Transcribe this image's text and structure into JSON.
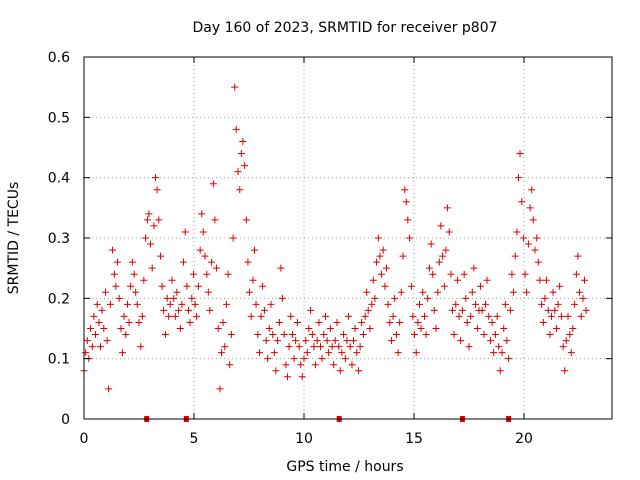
{
  "chart_data": {
    "type": "scatter",
    "title": "Day 160 of 2023, SRMTID for receiver p807",
    "xlabel": "GPS time / hours",
    "ylabel": "SRMTID / TECUs",
    "xlim": [
      0,
      24
    ],
    "ylim": [
      0,
      0.6
    ],
    "xticks": [
      0,
      5,
      10,
      15,
      20
    ],
    "xtick_labels": [
      "0",
      "5",
      "10",
      "15",
      "20"
    ],
    "yticks": [
      0,
      0.1,
      0.2,
      0.3,
      0.4,
      0.5,
      0.6
    ],
    "ytick_labels": [
      "0",
      "0.1",
      "0.2",
      "0.3",
      "0.4",
      "0.5",
      "0.6"
    ],
    "grid": true,
    "marker": "+",
    "color": "#dd0000",
    "series": [
      {
        "name": "SRMTID",
        "points": [
          [
            0.0,
            0.08
          ],
          [
            0.08,
            0.11
          ],
          [
            0.15,
            0.13
          ],
          [
            0.22,
            0.1
          ],
          [
            0.3,
            0.15
          ],
          [
            0.38,
            0.12
          ],
          [
            0.45,
            0.17
          ],
          [
            0.52,
            0.14
          ],
          [
            0.6,
            0.19
          ],
          [
            0.68,
            0.16
          ],
          [
            0.75,
            0.12
          ],
          [
            0.82,
            0.18
          ],
          [
            0.9,
            0.15
          ],
          [
            0.98,
            0.21
          ],
          [
            1.05,
            0.13
          ],
          [
            1.12,
            0.05
          ],
          [
            1.2,
            0.19
          ],
          [
            1.3,
            0.28
          ],
          [
            1.38,
            0.24
          ],
          [
            1.45,
            0.22
          ],
          [
            1.52,
            0.26
          ],
          [
            1.6,
            0.2
          ],
          [
            1.68,
            0.15
          ],
          [
            1.75,
            0.11
          ],
          [
            1.82,
            0.17
          ],
          [
            1.9,
            0.14
          ],
          [
            1.98,
            0.19
          ],
          [
            2.05,
            0.16
          ],
          [
            2.12,
            0.22
          ],
          [
            2.2,
            0.26
          ],
          [
            2.28,
            0.24
          ],
          [
            2.35,
            0.21
          ],
          [
            2.42,
            0.19
          ],
          [
            2.5,
            0.16
          ],
          [
            2.58,
            0.12
          ],
          [
            2.65,
            0.17
          ],
          [
            2.72,
            0.23
          ],
          [
            2.8,
            0.3
          ],
          [
            2.88,
            0.33
          ],
          [
            2.95,
            0.34
          ],
          [
            3.02,
            0.29
          ],
          [
            3.1,
            0.25
          ],
          [
            3.18,
            0.32
          ],
          [
            3.25,
            0.4
          ],
          [
            3.32,
            0.38
          ],
          [
            3.4,
            0.33
          ],
          [
            3.48,
            0.27
          ],
          [
            3.55,
            0.22
          ],
          [
            3.62,
            0.18
          ],
          [
            3.7,
            0.14
          ],
          [
            3.78,
            0.2
          ],
          [
            3.85,
            0.17
          ],
          [
            3.92,
            0.19
          ],
          [
            4.0,
            0.23
          ],
          [
            4.08,
            0.2
          ],
          [
            4.15,
            0.17
          ],
          [
            4.22,
            0.21
          ],
          [
            4.3,
            0.18
          ],
          [
            4.38,
            0.15
          ],
          [
            4.45,
            0.19
          ],
          [
            4.52,
            0.26
          ],
          [
            4.6,
            0.31
          ],
          [
            4.68,
            0.22
          ],
          [
            4.75,
            0.18
          ],
          [
            4.82,
            0.16
          ],
          [
            4.9,
            0.2
          ],
          [
            4.98,
            0.24
          ],
          [
            5.05,
            0.19
          ],
          [
            5.12,
            0.17
          ],
          [
            5.2,
            0.22
          ],
          [
            5.28,
            0.28
          ],
          [
            5.35,
            0.34
          ],
          [
            5.42,
            0.31
          ],
          [
            5.5,
            0.27
          ],
          [
            5.58,
            0.24
          ],
          [
            5.65,
            0.21
          ],
          [
            5.72,
            0.18
          ],
          [
            5.8,
            0.26
          ],
          [
            5.88,
            0.39
          ],
          [
            5.95,
            0.33
          ],
          [
            6.02,
            0.25
          ],
          [
            6.1,
            0.15
          ],
          [
            6.18,
            0.05
          ],
          [
            6.25,
            0.11
          ],
          [
            6.32,
            0.16
          ],
          [
            6.4,
            0.12
          ],
          [
            6.48,
            0.19
          ],
          [
            6.55,
            0.24
          ],
          [
            6.62,
            0.09
          ],
          [
            6.7,
            0.14
          ],
          [
            6.78,
            0.3
          ],
          [
            6.85,
            0.55
          ],
          [
            6.92,
            0.48
          ],
          [
            7.0,
            0.41
          ],
          [
            7.08,
            0.38
          ],
          [
            7.15,
            0.44
          ],
          [
            7.22,
            0.46
          ],
          [
            7.3,
            0.42
          ],
          [
            7.38,
            0.33
          ],
          [
            7.45,
            0.26
          ],
          [
            7.52,
            0.21
          ],
          [
            7.6,
            0.17
          ],
          [
            7.68,
            0.23
          ],
          [
            7.75,
            0.28
          ],
          [
            7.82,
            0.19
          ],
          [
            7.9,
            0.14
          ],
          [
            7.98,
            0.11
          ],
          [
            8.05,
            0.17
          ],
          [
            8.12,
            0.22
          ],
          [
            8.2,
            0.18
          ],
          [
            8.28,
            0.13
          ],
          [
            8.35,
            0.1
          ],
          [
            8.42,
            0.15
          ],
          [
            8.5,
            0.19
          ],
          [
            8.58,
            0.14
          ],
          [
            8.65,
            0.11
          ],
          [
            8.72,
            0.08
          ],
          [
            8.8,
            0.13
          ],
          [
            8.88,
            0.16
          ],
          [
            8.95,
            0.25
          ],
          [
            9.02,
            0.2
          ],
          [
            9.1,
            0.14
          ],
          [
            9.18,
            0.09
          ],
          [
            9.25,
            0.07
          ],
          [
            9.32,
            0.12
          ],
          [
            9.4,
            0.17
          ],
          [
            9.48,
            0.14
          ],
          [
            9.55,
            0.1
          ],
          [
            9.62,
            0.13
          ],
          [
            9.7,
            0.16
          ],
          [
            9.78,
            0.12
          ],
          [
            9.85,
            0.09
          ],
          [
            9.92,
            0.07
          ],
          [
            10.0,
            0.1
          ],
          [
            10.08,
            0.13
          ],
          [
            10.15,
            0.11
          ],
          [
            10.22,
            0.15
          ],
          [
            10.3,
            0.18
          ],
          [
            10.38,
            0.14
          ],
          [
            10.45,
            0.12
          ],
          [
            10.52,
            0.09
          ],
          [
            10.6,
            0.13
          ],
          [
            10.68,
            0.16
          ],
          [
            10.75,
            0.12
          ],
          [
            10.82,
            0.1
          ],
          [
            10.9,
            0.14
          ],
          [
            10.98,
            0.17
          ],
          [
            11.05,
            0.13
          ],
          [
            11.12,
            0.11
          ],
          [
            11.2,
            0.15
          ],
          [
            11.28,
            0.12
          ],
          [
            11.35,
            0.09
          ],
          [
            11.42,
            0.13
          ],
          [
            11.5,
            0.16
          ],
          [
            11.58,
            0.12
          ],
          [
            11.65,
            0.08
          ],
          [
            11.72,
            0.11
          ],
          [
            11.8,
            0.14
          ],
          [
            11.88,
            0.1
          ],
          [
            11.95,
            0.13
          ],
          [
            12.02,
            0.17
          ],
          [
            12.1,
            0.12
          ],
          [
            12.18,
            0.09
          ],
          [
            12.25,
            0.13
          ],
          [
            12.32,
            0.15
          ],
          [
            12.4,
            0.11
          ],
          [
            12.48,
            0.08
          ],
          [
            12.55,
            0.12
          ],
          [
            12.62,
            0.16
          ],
          [
            12.7,
            0.14
          ],
          [
            12.78,
            0.17
          ],
          [
            12.85,
            0.21
          ],
          [
            12.92,
            0.18
          ],
          [
            13.0,
            0.15
          ],
          [
            13.08,
            0.19
          ],
          [
            13.15,
            0.23
          ],
          [
            13.22,
            0.2
          ],
          [
            13.3,
            0.26
          ],
          [
            13.38,
            0.3
          ],
          [
            13.45,
            0.27
          ],
          [
            13.52,
            0.24
          ],
          [
            13.6,
            0.28
          ],
          [
            13.68,
            0.22
          ],
          [
            13.75,
            0.25
          ],
          [
            13.82,
            0.19
          ],
          [
            13.9,
            0.16
          ],
          [
            13.98,
            0.13
          ],
          [
            14.05,
            0.17
          ],
          [
            14.12,
            0.2
          ],
          [
            14.2,
            0.14
          ],
          [
            14.28,
            0.11
          ],
          [
            14.35,
            0.16
          ],
          [
            14.42,
            0.21
          ],
          [
            14.5,
            0.27
          ],
          [
            14.58,
            0.38
          ],
          [
            14.65,
            0.36
          ],
          [
            14.72,
            0.33
          ],
          [
            14.8,
            0.3
          ],
          [
            14.88,
            0.22
          ],
          [
            14.95,
            0.17
          ],
          [
            15.02,
            0.14
          ],
          [
            15.1,
            0.11
          ],
          [
            15.18,
            0.16
          ],
          [
            15.25,
            0.19
          ],
          [
            15.32,
            0.15
          ],
          [
            15.4,
            0.21
          ],
          [
            15.48,
            0.17
          ],
          [
            15.55,
            0.14
          ],
          [
            15.62,
            0.2
          ],
          [
            15.7,
            0.25
          ],
          [
            15.78,
            0.29
          ],
          [
            15.85,
            0.24
          ],
          [
            15.92,
            0.18
          ],
          [
            16.0,
            0.15
          ],
          [
            16.08,
            0.21
          ],
          [
            16.15,
            0.26
          ],
          [
            16.22,
            0.32
          ],
          [
            16.3,
            0.27
          ],
          [
            16.38,
            0.22
          ],
          [
            16.45,
            0.28
          ],
          [
            16.52,
            0.35
          ],
          [
            16.6,
            0.31
          ],
          [
            16.68,
            0.24
          ],
          [
            16.75,
            0.18
          ],
          [
            16.82,
            0.14
          ],
          [
            16.9,
            0.19
          ],
          [
            16.98,
            0.23
          ],
          [
            17.05,
            0.17
          ],
          [
            17.12,
            0.13
          ],
          [
            17.2,
            0.18
          ],
          [
            17.28,
            0.24
          ],
          [
            17.35,
            0.2
          ],
          [
            17.42,
            0.16
          ],
          [
            17.5,
            0.12
          ],
          [
            17.58,
            0.17
          ],
          [
            17.65,
            0.21
          ],
          [
            17.72,
            0.25
          ],
          [
            17.8,
            0.19
          ],
          [
            17.88,
            0.15
          ],
          [
            17.95,
            0.18
          ],
          [
            18.02,
            0.22
          ],
          [
            18.1,
            0.18
          ],
          [
            18.18,
            0.14
          ],
          [
            18.25,
            0.19
          ],
          [
            18.32,
            0.23
          ],
          [
            18.4,
            0.17
          ],
          [
            18.48,
            0.13
          ],
          [
            18.55,
            0.16
          ],
          [
            18.62,
            0.11
          ],
          [
            18.7,
            0.14
          ],
          [
            18.78,
            0.17
          ],
          [
            18.85,
            0.12
          ],
          [
            18.92,
            0.08
          ],
          [
            19.0,
            0.11
          ],
          [
            19.08,
            0.15
          ],
          [
            19.15,
            0.19
          ],
          [
            19.22,
            0.13
          ],
          [
            19.3,
            0.1
          ],
          [
            19.38,
            0.18
          ],
          [
            19.45,
            0.24
          ],
          [
            19.52,
            0.21
          ],
          [
            19.6,
            0.27
          ],
          [
            19.68,
            0.31
          ],
          [
            19.75,
            0.4
          ],
          [
            19.82,
            0.44
          ],
          [
            19.9,
            0.36
          ],
          [
            19.98,
            0.3
          ],
          [
            20.05,
            0.24
          ],
          [
            20.12,
            0.21
          ],
          [
            20.2,
            0.29
          ],
          [
            20.28,
            0.35
          ],
          [
            20.35,
            0.38
          ],
          [
            20.42,
            0.33
          ],
          [
            20.5,
            0.28
          ],
          [
            20.58,
            0.3
          ],
          [
            20.65,
            0.26
          ],
          [
            20.72,
            0.23
          ],
          [
            20.8,
            0.19
          ],
          [
            20.88,
            0.16
          ],
          [
            20.95,
            0.2
          ],
          [
            21.02,
            0.23
          ],
          [
            21.1,
            0.18
          ],
          [
            21.18,
            0.14
          ],
          [
            21.25,
            0.17
          ],
          [
            21.32,
            0.21
          ],
          [
            21.4,
            0.18
          ],
          [
            21.48,
            0.15
          ],
          [
            21.55,
            0.19
          ],
          [
            21.62,
            0.22
          ],
          [
            21.7,
            0.17
          ],
          [
            21.78,
            0.12
          ],
          [
            21.85,
            0.08
          ],
          [
            21.92,
            0.13
          ],
          [
            22.0,
            0.17
          ],
          [
            22.08,
            0.14
          ],
          [
            22.15,
            0.11
          ],
          [
            22.22,
            0.15
          ],
          [
            22.3,
            0.19
          ],
          [
            22.38,
            0.24
          ],
          [
            22.45,
            0.27
          ],
          [
            22.52,
            0.21
          ],
          [
            22.6,
            0.17
          ],
          [
            22.68,
            0.2
          ],
          [
            22.75,
            0.23
          ],
          [
            22.82,
            0.18
          ]
        ]
      }
    ],
    "baseline_markers_x": [
      2.85,
      4.65,
      11.6,
      17.2,
      19.3
    ]
  }
}
